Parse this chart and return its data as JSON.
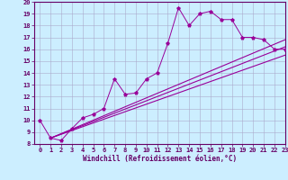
{
  "title": "",
  "xlabel": "Windchill (Refroidissement éolien,°C)",
  "x_data": [
    0,
    1,
    2,
    3,
    4,
    5,
    6,
    7,
    8,
    9,
    10,
    11,
    12,
    13,
    14,
    15,
    16,
    17,
    18,
    19,
    20,
    21,
    22,
    23
  ],
  "main_line_y": [
    10.0,
    8.5,
    8.3,
    9.3,
    10.2,
    10.5,
    11.0,
    13.5,
    12.2,
    12.3,
    13.5,
    14.0,
    16.5,
    19.5,
    18.0,
    19.0,
    19.2,
    18.5,
    18.5,
    17.0,
    17.0,
    16.8,
    16.0,
    16.0
  ],
  "straight_lines": [
    {
      "x": [
        1,
        23
      ],
      "y": [
        8.5,
        16.2
      ]
    },
    {
      "x": [
        1,
        23
      ],
      "y": [
        8.5,
        15.5
      ]
    },
    {
      "x": [
        1,
        23
      ],
      "y": [
        8.5,
        16.8
      ]
    }
  ],
  "ylim": [
    8,
    20
  ],
  "xlim": [
    -0.5,
    23
  ],
  "yticks": [
    8,
    9,
    10,
    11,
    12,
    13,
    14,
    15,
    16,
    17,
    18,
    19,
    20
  ],
  "xticks": [
    0,
    1,
    2,
    3,
    4,
    5,
    6,
    7,
    8,
    9,
    10,
    11,
    12,
    13,
    14,
    15,
    16,
    17,
    18,
    19,
    20,
    21,
    22,
    23
  ],
  "line_color": "#990099",
  "bg_color": "#cceeff",
  "grid_color": "#aaaacc",
  "label_color": "#660066",
  "border_color": "#660066",
  "tick_fontsize": 5,
  "xlabel_fontsize": 5.5
}
